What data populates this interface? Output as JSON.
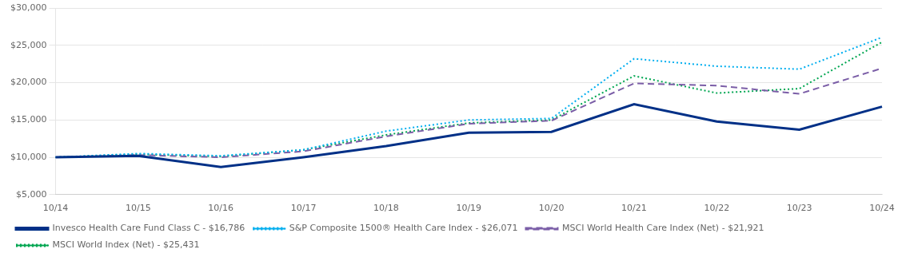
{
  "chart_data": {
    "type": "line",
    "categories": [
      "10/14",
      "10/15",
      "10/16",
      "10/17",
      "10/18",
      "10/19",
      "10/20",
      "10/21",
      "10/22",
      "10/23",
      "10/24"
    ],
    "series": [
      {
        "name": "Invesco Health Care Fund Class C - $16,786",
        "color": "#003087",
        "line_style": "solid",
        "values": [
          10000,
          10200,
          8700,
          10000,
          11500,
          13300,
          13400,
          17100,
          14800,
          13700,
          16786
        ]
      },
      {
        "name": "S&P Composite 1500® Health Care Index - $26,071",
        "color": "#00AEEF",
        "line_style": "dotted",
        "values": [
          10000,
          10500,
          10200,
          11000,
          13500,
          15000,
          15200,
          23200,
          22200,
          21800,
          26071
        ]
      },
      {
        "name": "MSCI World Health Care Index (Net) - $21,921",
        "color": "#7B5EA7",
        "line_style": "dashed",
        "values": [
          10000,
          10300,
          10000,
          10800,
          12800,
          14500,
          14900,
          19900,
          19600,
          18500,
          21921
        ]
      },
      {
        "name": "MSCI World Index (Net) - $25,431",
        "color": "#00A651",
        "line_style": "dotted",
        "values": [
          10000,
          10400,
          10100,
          11000,
          13000,
          14600,
          15000,
          20900,
          18600,
          19200,
          25431
        ]
      }
    ],
    "ylim": [
      5000,
      30000
    ],
    "yticks": [
      {
        "value": 5000,
        "label": "$5,000"
      },
      {
        "value": 10000,
        "label": "$10,000"
      },
      {
        "value": 15000,
        "label": "$15,000"
      },
      {
        "value": 20000,
        "label": "$20,000"
      },
      {
        "value": 25000,
        "label": "$25,000"
      },
      {
        "value": 30000,
        "label": "$30,000"
      }
    ],
    "grid": "y",
    "legend": "lower left"
  }
}
